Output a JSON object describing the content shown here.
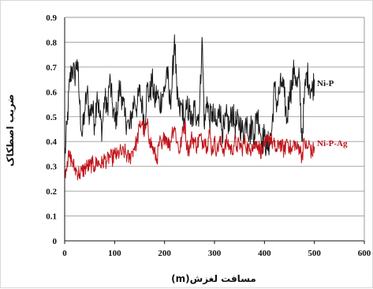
{
  "chart_data": {
    "type": "line",
    "title": "",
    "xlabel": "مسافت لغزش(m)",
    "ylabel": "ضریب اصطکاک",
    "xlim": [
      0,
      600
    ],
    "ylim": [
      0,
      0.9
    ],
    "xticks": [
      0,
      100,
      200,
      300,
      400,
      500,
      600
    ],
    "yticks": [
      0,
      0.1,
      0.2,
      0.3,
      0.4,
      0.5,
      0.6,
      0.7,
      0.8,
      0.9
    ],
    "xtick_labels": [
      "0",
      "100",
      "200",
      "300",
      "400",
      "500",
      "600"
    ],
    "ytick_labels": [
      "0",
      "0.1",
      "0.2",
      "0.3",
      "0.4",
      "0.5",
      "0.6",
      "0.7",
      "0.8",
      "0.9"
    ],
    "grid": "horizontal",
    "legend": "inline-right",
    "series": [
      {
        "name": "Ni-P",
        "color": "#1a1a1a",
        "x": [
          0,
          5,
          10,
          15,
          20,
          25,
          30,
          35,
          40,
          45,
          50,
          55,
          60,
          65,
          70,
          75,
          80,
          85,
          90,
          95,
          100,
          105,
          110,
          115,
          120,
          125,
          130,
          135,
          140,
          145,
          150,
          155,
          160,
          165,
          170,
          175,
          180,
          185,
          190,
          195,
          200,
          205,
          210,
          215,
          220,
          225,
          230,
          235,
          240,
          245,
          250,
          255,
          260,
          265,
          270,
          275,
          280,
          285,
          290,
          295,
          300,
          305,
          310,
          315,
          320,
          325,
          330,
          335,
          340,
          345,
          350,
          355,
          360,
          365,
          370,
          375,
          380,
          385,
          390,
          395,
          400,
          405,
          410,
          415,
          420,
          425,
          430,
          435,
          440,
          445,
          450,
          455,
          460,
          465,
          470,
          475,
          480,
          485,
          490,
          495,
          500
        ],
        "y": [
          0.33,
          0.47,
          0.64,
          0.7,
          0.66,
          0.73,
          0.55,
          0.42,
          0.52,
          0.6,
          0.5,
          0.55,
          0.47,
          0.6,
          0.5,
          0.45,
          0.58,
          0.52,
          0.65,
          0.56,
          0.48,
          0.52,
          0.62,
          0.58,
          0.5,
          0.48,
          0.45,
          0.52,
          0.57,
          0.54,
          0.6,
          0.55,
          0.47,
          0.62,
          0.58,
          0.65,
          0.56,
          0.6,
          0.54,
          0.59,
          0.6,
          0.7,
          0.55,
          0.62,
          0.83,
          0.57,
          0.52,
          0.55,
          0.46,
          0.54,
          0.52,
          0.46,
          0.54,
          0.5,
          0.52,
          0.82,
          0.45,
          0.58,
          0.48,
          0.52,
          0.48,
          0.46,
          0.55,
          0.45,
          0.45,
          0.5,
          0.45,
          0.53,
          0.47,
          0.47,
          0.48,
          0.44,
          0.45,
          0.5,
          0.42,
          0.47,
          0.43,
          0.52,
          0.47,
          0.4,
          0.42,
          0.37,
          0.4,
          0.45,
          0.62,
          0.55,
          0.6,
          0.64,
          0.58,
          0.48,
          0.6,
          0.62,
          0.7,
          0.62,
          0.65,
          0.4,
          0.58,
          0.68,
          0.63,
          0.6,
          0.65
        ]
      },
      {
        "name": "Ni-P-Ag",
        "color": "#c0141a",
        "x": [
          0,
          5,
          10,
          15,
          20,
          25,
          30,
          35,
          40,
          45,
          50,
          55,
          60,
          65,
          70,
          75,
          80,
          85,
          90,
          95,
          100,
          105,
          110,
          115,
          120,
          125,
          130,
          135,
          140,
          145,
          150,
          155,
          160,
          165,
          170,
          175,
          180,
          185,
          190,
          195,
          200,
          205,
          210,
          215,
          220,
          225,
          230,
          235,
          240,
          245,
          250,
          255,
          260,
          265,
          270,
          275,
          280,
          285,
          290,
          295,
          300,
          305,
          310,
          315,
          320,
          325,
          330,
          335,
          340,
          345,
          350,
          355,
          360,
          365,
          370,
          375,
          380,
          385,
          390,
          395,
          400,
          405,
          410,
          415,
          420,
          425,
          430,
          435,
          440,
          445,
          450,
          455,
          460,
          465,
          470,
          475,
          480,
          485,
          490,
          495,
          500
        ],
        "y": [
          0.27,
          0.32,
          0.34,
          0.32,
          0.29,
          0.28,
          0.27,
          0.28,
          0.29,
          0.3,
          0.3,
          0.31,
          0.3,
          0.32,
          0.31,
          0.31,
          0.33,
          0.32,
          0.34,
          0.33,
          0.35,
          0.34,
          0.36,
          0.35,
          0.36,
          0.34,
          0.33,
          0.36,
          0.38,
          0.4,
          0.46,
          0.48,
          0.43,
          0.47,
          0.41,
          0.38,
          0.35,
          0.33,
          0.4,
          0.37,
          0.43,
          0.41,
          0.38,
          0.44,
          0.46,
          0.4,
          0.36,
          0.42,
          0.48,
          0.38,
          0.37,
          0.42,
          0.4,
          0.38,
          0.42,
          0.4,
          0.41,
          0.38,
          0.44,
          0.36,
          0.4,
          0.36,
          0.4,
          0.38,
          0.37,
          0.4,
          0.38,
          0.36,
          0.4,
          0.38,
          0.39,
          0.37,
          0.4,
          0.38,
          0.36,
          0.39,
          0.38,
          0.4,
          0.37,
          0.36,
          0.38,
          0.4,
          0.42,
          0.4,
          0.38,
          0.36,
          0.4,
          0.38,
          0.36,
          0.41,
          0.38,
          0.36,
          0.4,
          0.37,
          0.38,
          0.34,
          0.4,
          0.37,
          0.39,
          0.35,
          0.38
        ]
      }
    ]
  }
}
